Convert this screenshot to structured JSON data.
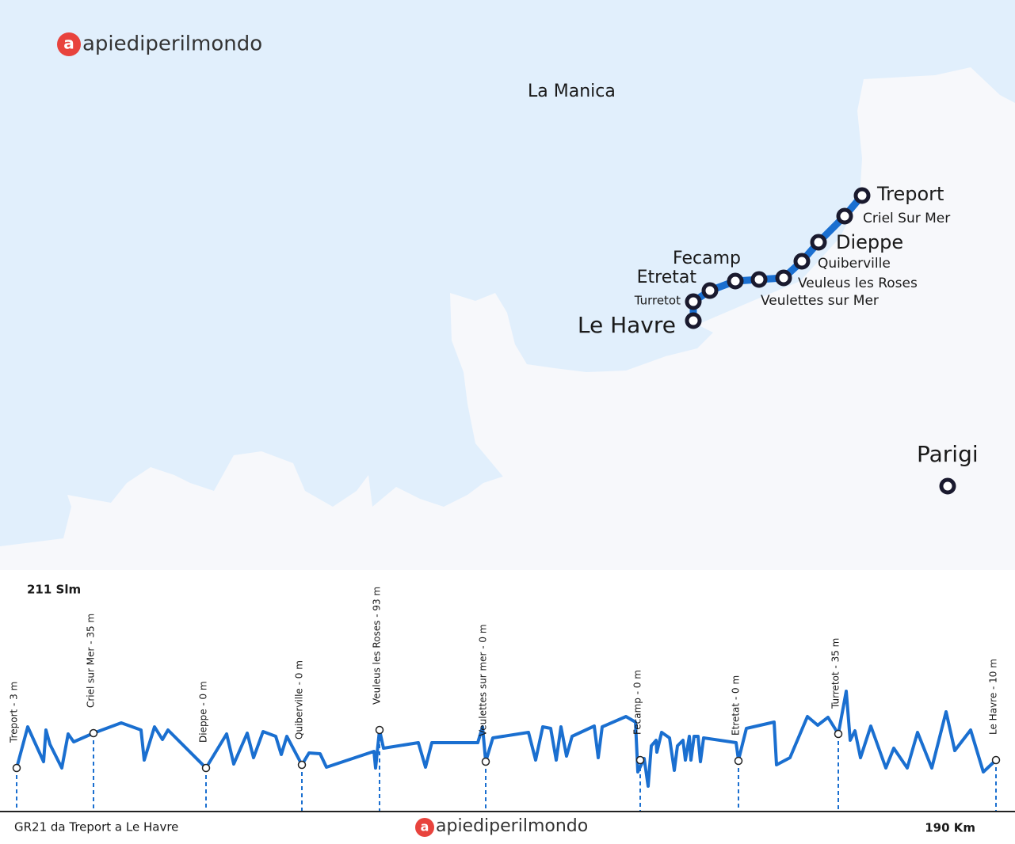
{
  "brand": "apiediperilmondo",
  "map": {
    "sea": "La Manica",
    "stops": [
      "Treport",
      "Criel Sur Mer",
      "Dieppe",
      "Quiberville",
      "Veuleus les Roses",
      "Veulettes sur Mer",
      "Fecamp",
      "Etretat",
      "Turretot",
      "Le Havre"
    ],
    "city": "Parigi"
  },
  "profile": {
    "max_elevation": "211 Slm",
    "stations": [
      "Treport  - 3 m",
      "Criel sur Mer  - 35 m",
      "Dieppe  - 0 m",
      "Quiberville  - 0 m",
      "Veuleus les Roses  - 93 m",
      "Veulettes sur mer  - 0 m",
      "Fecamp  - 0 m",
      "Etretat  - 0 m",
      "Turretot  - 35 m",
      "Le Havre  - 10 m"
    ],
    "route": "GR21 da Treport a Le Havre",
    "distance": "190 Km"
  }
}
